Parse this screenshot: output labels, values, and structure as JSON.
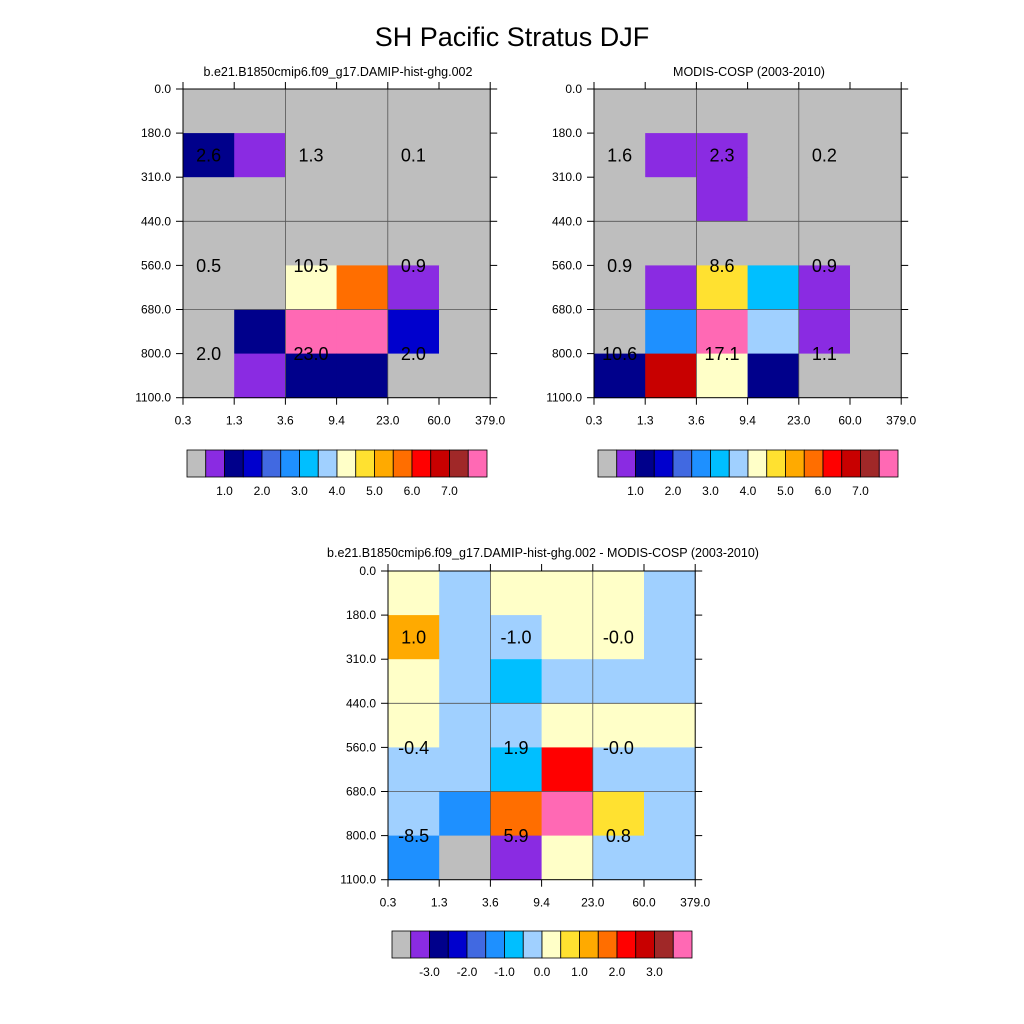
{
  "figure": {
    "title": "SH Pacific Stratus DJF"
  },
  "chart_data": [
    {
      "type": "heatmap",
      "title": "b.e21.B1850cmip6.f09_g17.DAMIP-hist-ghg.002",
      "x_tick_labels": [
        "0.3",
        "1.3",
        "3.6",
        "9.4",
        "23.0",
        "60.0",
        "379.0"
      ],
      "y_tick_labels": [
        "0.0",
        "180.0",
        "310.0",
        "440.0",
        "560.0",
        "680.0",
        "800.0",
        "1100.0"
      ],
      "cell_colors": [
        [
          "#BEBEBE",
          "#BEBEBE",
          "#BEBEBE",
          "#BEBEBE",
          "#BEBEBE",
          "#BEBEBE"
        ],
        [
          "#00008B",
          "#8A2BE2",
          "#BEBEBE",
          "#BEBEBE",
          "#BEBEBE",
          "#BEBEBE"
        ],
        [
          "#BEBEBE",
          "#BEBEBE",
          "#BEBEBE",
          "#BEBEBE",
          "#BEBEBE",
          "#BEBEBE"
        ],
        [
          "#BEBEBE",
          "#BEBEBE",
          "#BEBEBE",
          "#BEBEBE",
          "#BEBEBE",
          "#BEBEBE"
        ],
        [
          "#BEBEBE",
          "#BEBEBE",
          "#FFFFC8",
          "#FF6E00",
          "#8A2BE2",
          "#BEBEBE"
        ],
        [
          "#BEBEBE",
          "#00008B",
          "#FF69B4",
          "#FF69B4",
          "#0000CD",
          "#BEBEBE"
        ],
        [
          "#BEBEBE",
          "#8A2BE2",
          "#00008B",
          "#00008B",
          "#BEBEBE",
          "#BEBEBE"
        ]
      ],
      "box_labels": [
        {
          "text": "2.6",
          "col": 0.5,
          "row": 1.5
        },
        {
          "text": "1.3",
          "col": 2.5,
          "row": 1.5
        },
        {
          "text": "0.1",
          "col": 4.5,
          "row": 1.5
        },
        {
          "text": "0.5",
          "col": 0.5,
          "row": 4.0
        },
        {
          "text": "10.5",
          "col": 2.5,
          "row": 4.0
        },
        {
          "text": "0.9",
          "col": 4.5,
          "row": 4.0
        },
        {
          "text": "2.0",
          "col": 0.5,
          "row": 6.0
        },
        {
          "text": "23.0",
          "col": 2.5,
          "row": 6.0
        },
        {
          "text": "2.0",
          "col": 4.5,
          "row": 6.0
        }
      ],
      "colorbar": {
        "colors": [
          "#BEBEBE",
          "#8A2BE2",
          "#00008B",
          "#0000CD",
          "#4169E1",
          "#1E90FF",
          "#00BFFF",
          "#A0D0FF",
          "#FFFFC8",
          "#FFE130",
          "#FFAA00",
          "#FF6E00",
          "#FF0000",
          "#C80000",
          "#A02828",
          "#FF69B4"
        ],
        "labels": [
          "1.0",
          "2.0",
          "3.0",
          "4.0",
          "5.0",
          "6.0",
          "7.0"
        ]
      }
    },
    {
      "type": "heatmap",
      "title": "MODIS-COSP (2003-2010)",
      "x_tick_labels": [
        "0.3",
        "1.3",
        "3.6",
        "9.4",
        "23.0",
        "60.0",
        "379.0"
      ],
      "y_tick_labels": [
        "0.0",
        "180.0",
        "310.0",
        "440.0",
        "560.0",
        "680.0",
        "800.0",
        "1100.0"
      ],
      "cell_colors": [
        [
          "#BEBEBE",
          "#BEBEBE",
          "#BEBEBE",
          "#BEBEBE",
          "#BEBEBE",
          "#BEBEBE"
        ],
        [
          "#BEBEBE",
          "#8A2BE2",
          "#8A2BE2",
          "#BEBEBE",
          "#BEBEBE",
          "#BEBEBE"
        ],
        [
          "#BEBEBE",
          "#BEBEBE",
          "#8A2BE2",
          "#BEBEBE",
          "#BEBEBE",
          "#BEBEBE"
        ],
        [
          "#BEBEBE",
          "#BEBEBE",
          "#BEBEBE",
          "#BEBEBE",
          "#BEBEBE",
          "#BEBEBE"
        ],
        [
          "#BEBEBE",
          "#8A2BE2",
          "#FFE130",
          "#00BFFF",
          "#8A2BE2",
          "#BEBEBE"
        ],
        [
          "#BEBEBE",
          "#1E90FF",
          "#FF69B4",
          "#A0D0FF",
          "#8A2BE2",
          "#BEBEBE"
        ],
        [
          "#00008B",
          "#C80000",
          "#FFFFC8",
          "#00008B",
          "#BEBEBE",
          "#BEBEBE"
        ]
      ],
      "box_labels": [
        {
          "text": "1.6",
          "col": 0.5,
          "row": 1.5
        },
        {
          "text": "2.3",
          "col": 2.5,
          "row": 1.5
        },
        {
          "text": "0.2",
          "col": 4.5,
          "row": 1.5
        },
        {
          "text": "0.9",
          "col": 0.5,
          "row": 4.0
        },
        {
          "text": "8.6",
          "col": 2.5,
          "row": 4.0
        },
        {
          "text": "0.9",
          "col": 4.5,
          "row": 4.0
        },
        {
          "text": "10.6",
          "col": 0.5,
          "row": 6.0
        },
        {
          "text": "17.1",
          "col": 2.5,
          "row": 6.0
        },
        {
          "text": "1.1",
          "col": 4.5,
          "row": 6.0
        }
      ],
      "colorbar": {
        "colors": [
          "#BEBEBE",
          "#8A2BE2",
          "#00008B",
          "#0000CD",
          "#4169E1",
          "#1E90FF",
          "#00BFFF",
          "#A0D0FF",
          "#FFFFC8",
          "#FFE130",
          "#FFAA00",
          "#FF6E00",
          "#FF0000",
          "#C80000",
          "#A02828",
          "#FF69B4"
        ],
        "labels": [
          "1.0",
          "2.0",
          "3.0",
          "4.0",
          "5.0",
          "6.0",
          "7.0"
        ]
      }
    },
    {
      "type": "heatmap",
      "title": "b.e21.B1850cmip6.f09_g17.DAMIP-hist-ghg.002 - MODIS-COSP (2003-2010)",
      "x_tick_labels": [
        "0.3",
        "1.3",
        "3.6",
        "9.4",
        "23.0",
        "60.0",
        "379.0"
      ],
      "y_tick_labels": [
        "0.0",
        "180.0",
        "310.0",
        "440.0",
        "560.0",
        "680.0",
        "800.0",
        "1100.0"
      ],
      "cell_colors": [
        [
          "#FFFFC8",
          "#A0D0FF",
          "#FFFFC8",
          "#FFFFC8",
          "#FFFFC8",
          "#A0D0FF"
        ],
        [
          "#FFAA00",
          "#A0D0FF",
          "#A0D0FF",
          "#FFFFC8",
          "#FFFFC8",
          "#A0D0FF"
        ],
        [
          "#FFFFC8",
          "#A0D0FF",
          "#00BFFF",
          "#A0D0FF",
          "#A0D0FF",
          "#A0D0FF"
        ],
        [
          "#FFFFC8",
          "#A0D0FF",
          "#A0D0FF",
          "#FFFFC8",
          "#FFFFC8",
          "#FFFFC8"
        ],
        [
          "#A0D0FF",
          "#A0D0FF",
          "#00BFFF",
          "#FF0000",
          "#A0D0FF",
          "#A0D0FF"
        ],
        [
          "#A0D0FF",
          "#1E90FF",
          "#FF6E00",
          "#FF69B4",
          "#FFE130",
          "#A0D0FF"
        ],
        [
          "#1E90FF",
          "#BEBEBE",
          "#8A2BE2",
          "#FFFFC8",
          "#A0D0FF",
          "#A0D0FF"
        ]
      ],
      "box_labels": [
        {
          "text": "1.0",
          "col": 0.5,
          "row": 1.5
        },
        {
          "text": "-1.0",
          "col": 2.5,
          "row": 1.5
        },
        {
          "text": "-0.0",
          "col": 4.5,
          "row": 1.5
        },
        {
          "text": "-0.4",
          "col": 0.5,
          "row": 4.0
        },
        {
          "text": "1.9",
          "col": 2.5,
          "row": 4.0
        },
        {
          "text": "-0.0",
          "col": 4.5,
          "row": 4.0
        },
        {
          "text": "-8.5",
          "col": 0.5,
          "row": 6.0
        },
        {
          "text": "5.9",
          "col": 2.5,
          "row": 6.0
        },
        {
          "text": "0.8",
          "col": 4.5,
          "row": 6.0
        }
      ],
      "colorbar": {
        "colors": [
          "#BEBEBE",
          "#8A2BE2",
          "#00008B",
          "#0000CD",
          "#4169E1",
          "#1E90FF",
          "#00BFFF",
          "#A0D0FF",
          "#FFFFC8",
          "#FFE130",
          "#FFAA00",
          "#FF6E00",
          "#FF0000",
          "#C80000",
          "#A02828",
          "#FF69B4"
        ],
        "labels": [
          "-3.0",
          "-2.0",
          "-1.0",
          "0.0",
          "1.0",
          "2.0",
          "3.0"
        ]
      }
    }
  ]
}
